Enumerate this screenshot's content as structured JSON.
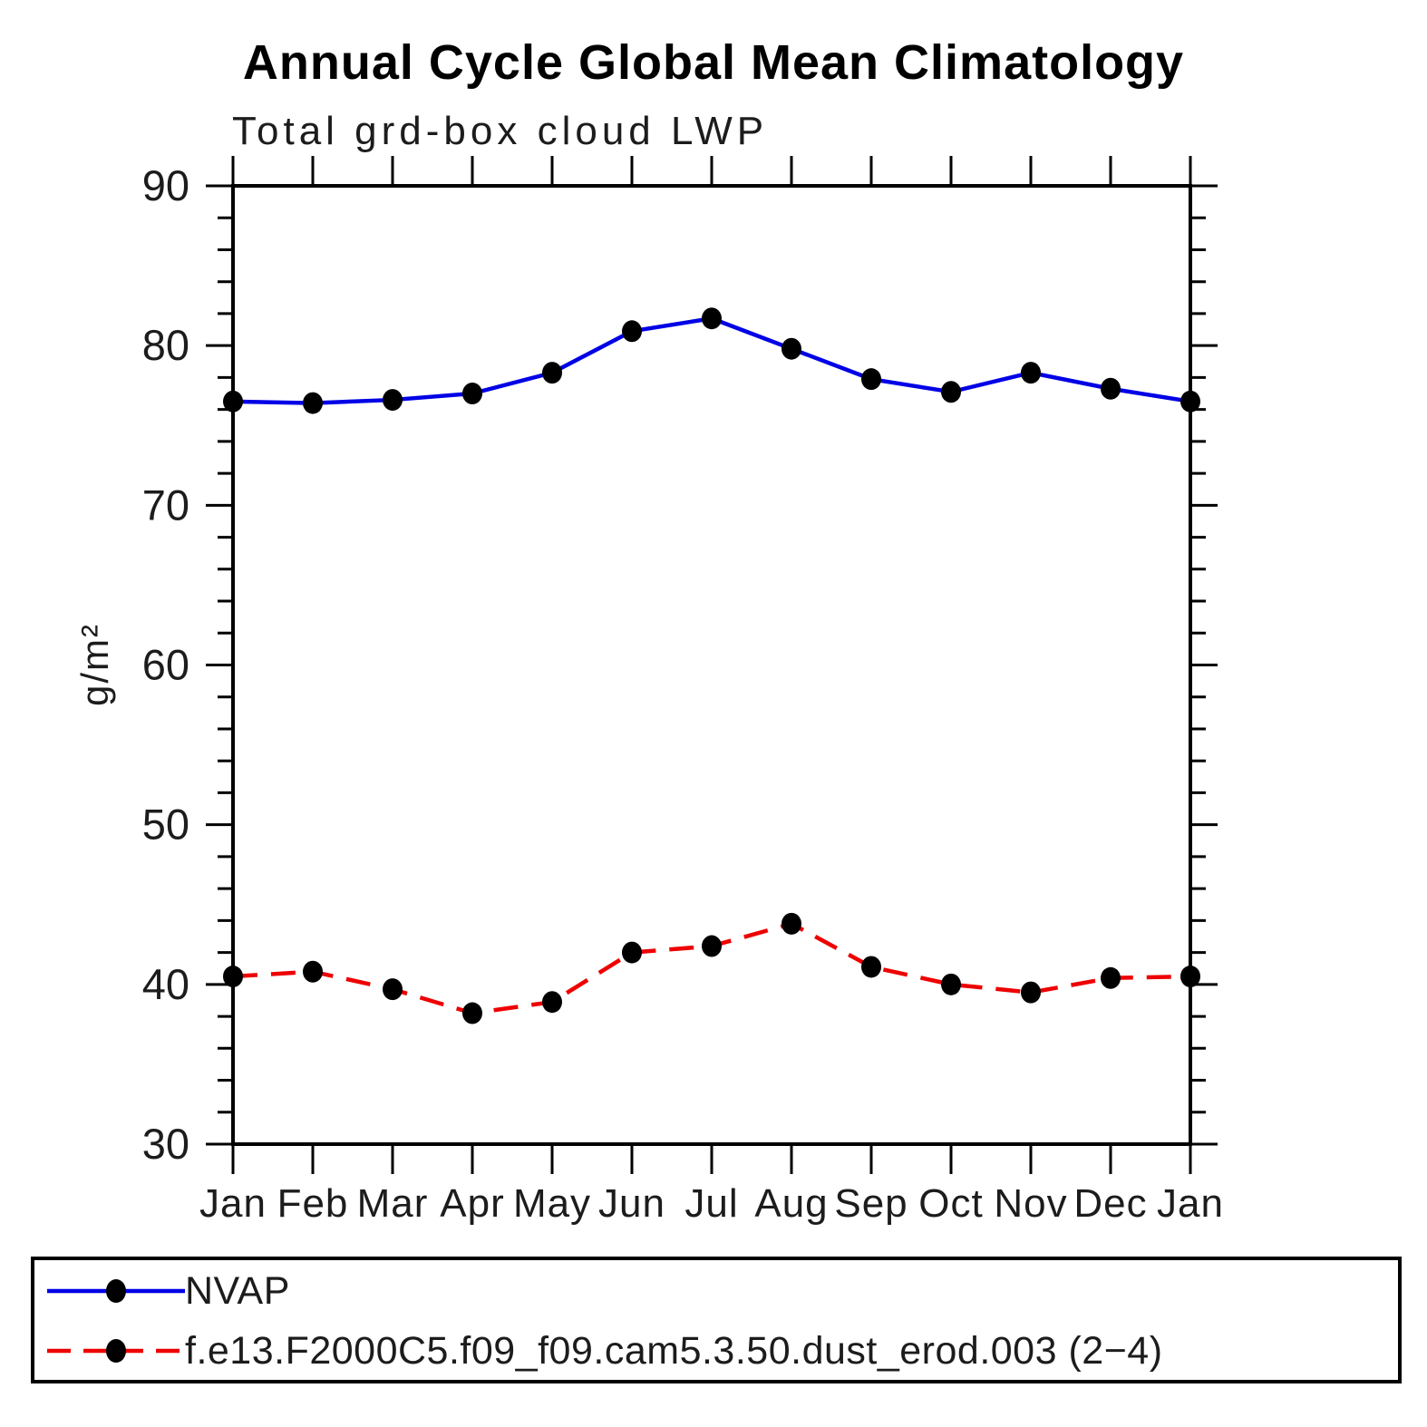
{
  "chart_data": {
    "type": "line",
    "title": "Annual Cycle Global Mean Climatology",
    "subtitle": "Total grd-box cloud LWP",
    "ylabel": "g/m²",
    "xlabel": "",
    "ylim": [
      30,
      90
    ],
    "ytick_major_step": 10,
    "ytick_minor_step": 2,
    "grid": false,
    "legend_position": "bottom",
    "categories": [
      "Jan",
      "Feb",
      "Mar",
      "Apr",
      "May",
      "Jun",
      "Jul",
      "Aug",
      "Sep",
      "Oct",
      "Nov",
      "Dec",
      "Jan"
    ],
    "series": [
      {
        "name": "NVAP",
        "color": "#0000e6",
        "line_style": "solid",
        "marker": "filled-black-circle",
        "values": [
          76.5,
          76.4,
          76.6,
          77.0,
          78.3,
          80.9,
          81.7,
          79.8,
          77.9,
          77.1,
          78.3,
          77.3,
          76.5
        ]
      },
      {
        "name": "f.e13.F2000C5.f09_f09.cam5.3.50.dust_erod.003 (2−4)",
        "color": "#ee0000",
        "line_style": "dashed",
        "marker": "filled-black-circle",
        "values": [
          40.5,
          40.8,
          39.7,
          38.2,
          38.9,
          42.0,
          42.4,
          43.8,
          41.1,
          40.0,
          39.5,
          40.4,
          40.5
        ]
      }
    ],
    "marker_color": "#000000",
    "axis_color": "#000000"
  }
}
